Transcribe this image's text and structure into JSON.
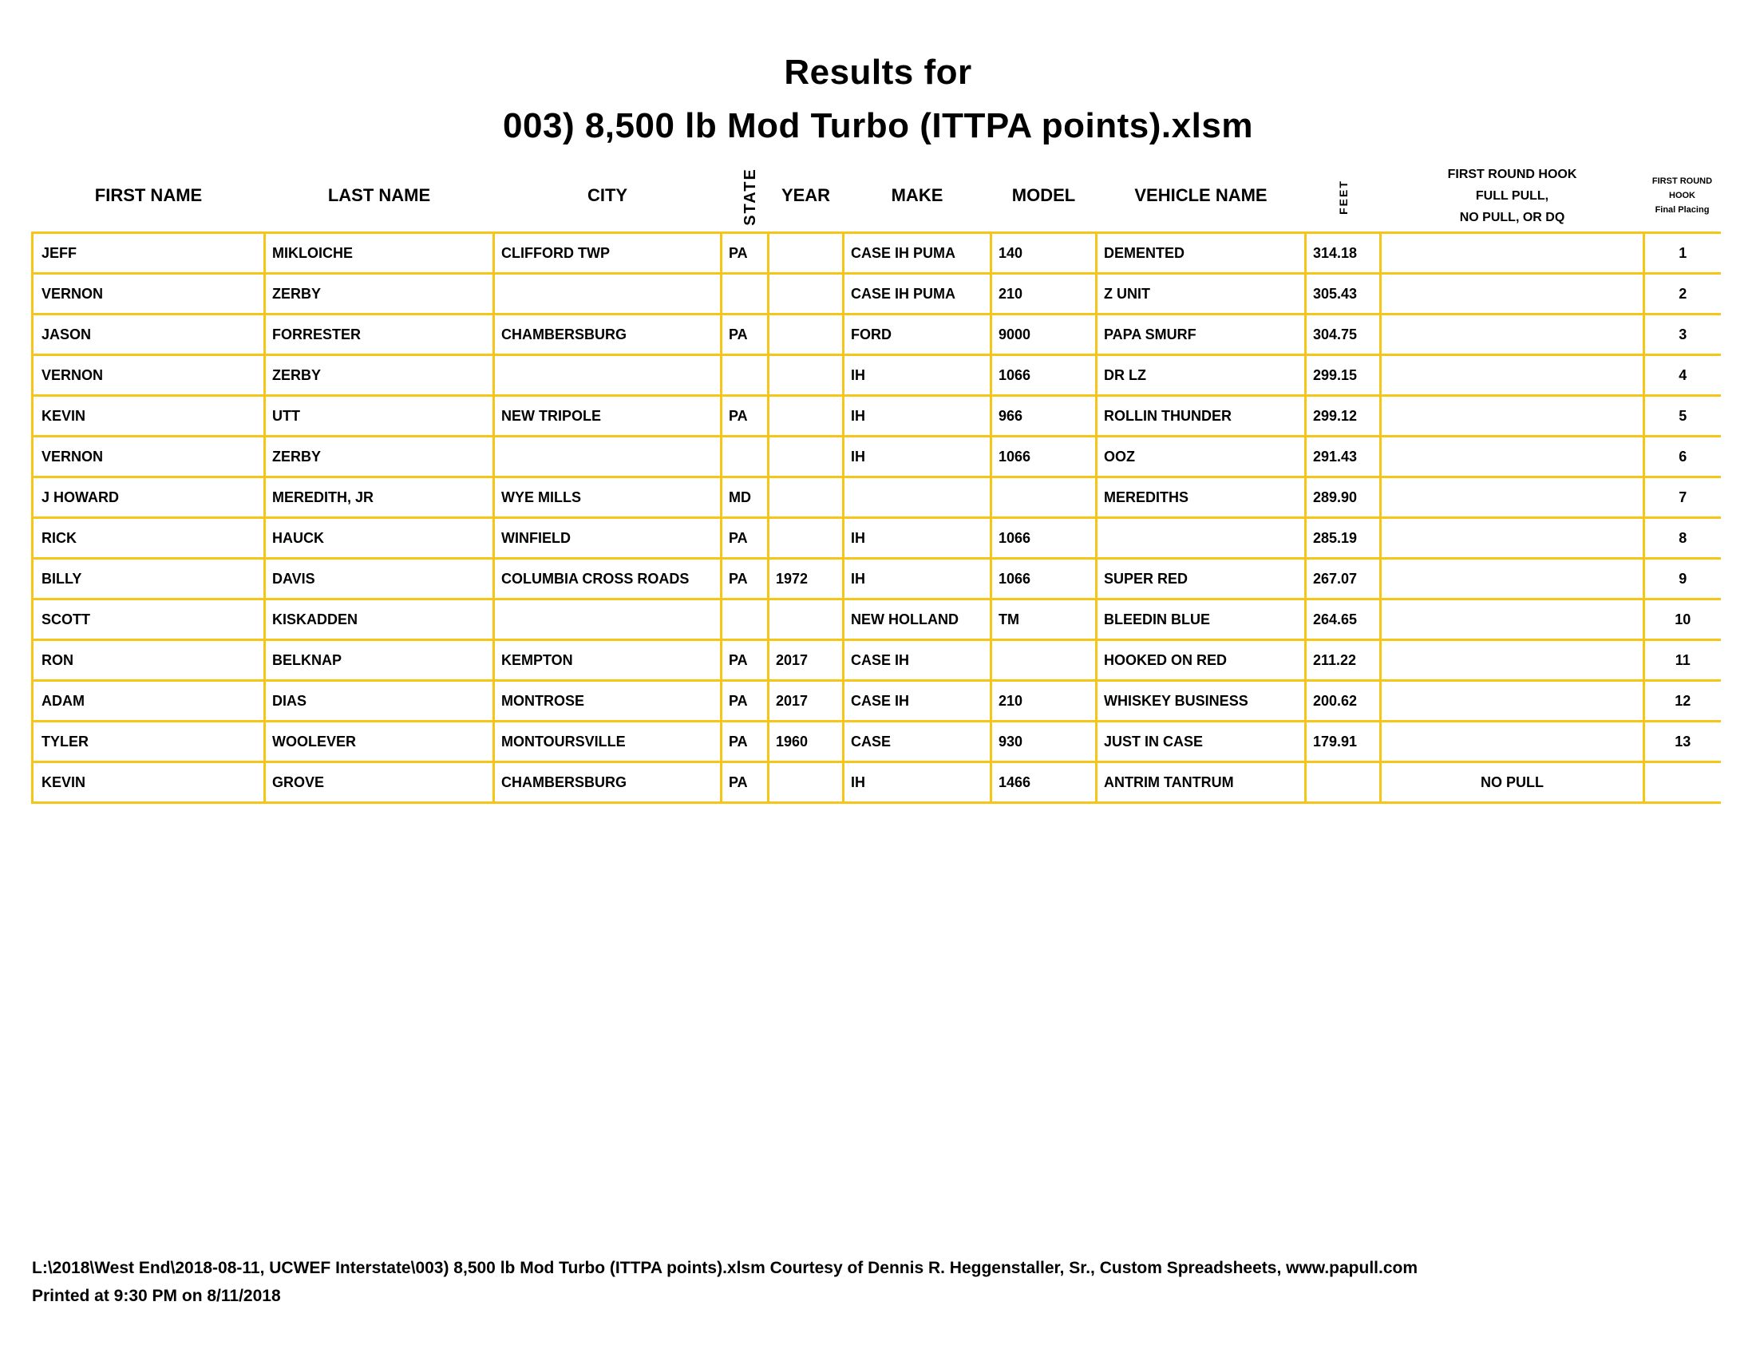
{
  "title": {
    "line1": "Results for",
    "line2": "003) 8,500 lb Mod Turbo (ITTPA points).xlsm"
  },
  "colors": {
    "grid": "#f5c518",
    "text": "#000000"
  },
  "headers": {
    "first_name": "FIRST NAME",
    "last_name": "LAST NAME",
    "city": "CITY",
    "state": "STATE",
    "year": "YEAR",
    "make": "MAKE",
    "model": "MODEL",
    "vehicle_name": "VEHICLE NAME",
    "feet": "FEET",
    "hook_line1": "FIRST ROUND HOOK",
    "hook_line2": "FULL PULL,",
    "hook_line3": "NO PULL, OR DQ",
    "placing_line1": "FIRST ROUND",
    "placing_line2": "HOOK",
    "placing_line3": "Final Placing"
  },
  "rows": [
    [
      "JEFF",
      "MIKLOICHE",
      "CLIFFORD TWP",
      "PA",
      "",
      "CASE IH PUMA",
      "140",
      "DEMENTED",
      "314.18",
      "",
      "1"
    ],
    [
      "VERNON",
      "ZERBY",
      "",
      "",
      "",
      "CASE IH PUMA",
      "210",
      "Z UNIT",
      "305.43",
      "",
      "2"
    ],
    [
      "JASON",
      "FORRESTER",
      "CHAMBERSBURG",
      "PA",
      "",
      "FORD",
      "9000",
      "PAPA SMURF",
      "304.75",
      "",
      "3"
    ],
    [
      "VERNON",
      "ZERBY",
      "",
      "",
      "",
      "IH",
      "1066",
      "DR LZ",
      "299.15",
      "",
      "4"
    ],
    [
      "KEVIN",
      "UTT",
      "NEW TRIPOLE",
      "PA",
      "",
      "IH",
      "966",
      "ROLLIN THUNDER",
      "299.12",
      "",
      "5"
    ],
    [
      "VERNON",
      "ZERBY",
      "",
      "",
      "",
      "IH",
      "1066",
      "OOZ",
      "291.43",
      "",
      "6"
    ],
    [
      "J HOWARD",
      "MEREDITH, JR",
      "WYE MILLS",
      "MD",
      "",
      "",
      "",
      "MEREDITHS",
      "289.90",
      "",
      "7"
    ],
    [
      "RICK",
      "HAUCK",
      "WINFIELD",
      "PA",
      "",
      "IH",
      "1066",
      "",
      "285.19",
      "",
      "8"
    ],
    [
      "BILLY",
      "DAVIS",
      "COLUMBIA CROSS ROADS",
      "PA",
      "1972",
      "IH",
      "1066",
      "SUPER RED",
      "267.07",
      "",
      "9"
    ],
    [
      "SCOTT",
      "KISKADDEN",
      "",
      "",
      "",
      "NEW HOLLAND",
      "TM",
      "BLEEDIN BLUE",
      "264.65",
      "",
      "10"
    ],
    [
      "RON",
      "BELKNAP",
      "KEMPTON",
      "PA",
      "2017",
      "CASE IH",
      "",
      "HOOKED ON RED",
      "211.22",
      "",
      "11"
    ],
    [
      "ADAM",
      "DIAS",
      "MONTROSE",
      "PA",
      "2017",
      "CASE IH",
      "210",
      "WHISKEY BUSINESS",
      "200.62",
      "",
      "12"
    ],
    [
      "TYLER",
      "WOOLEVER",
      "MONTOURSVILLE",
      "PA",
      "1960",
      "CASE",
      "930",
      "JUST IN CASE",
      "179.91",
      "",
      "13"
    ],
    [
      "KEVIN",
      "GROVE",
      "CHAMBERSBURG",
      "PA",
      "",
      "IH",
      "1466",
      "ANTRIM TANTRUM",
      "",
      "NO PULL",
      ""
    ]
  ],
  "footer": {
    "line1": "L:\\2018\\West End\\2018-08-11, UCWEF Interstate\\003) 8,500 lb Mod Turbo (ITTPA points).xlsm  Courtesy of Dennis R. Heggenstaller, Sr., Custom Spreadsheets, www.papull.com",
    "line2": "Printed at 9:30 PM on 8/11/2018"
  }
}
